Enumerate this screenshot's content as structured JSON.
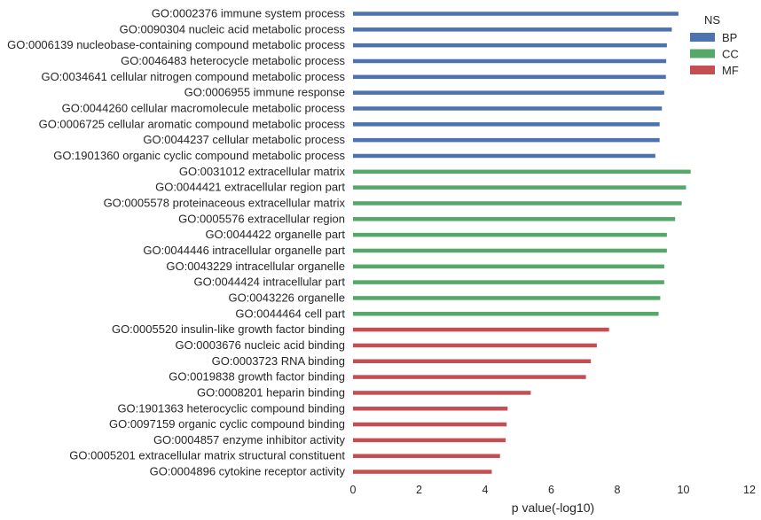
{
  "chart_data": {
    "type": "bar",
    "orientation": "horizontal",
    "title": "",
    "xlabel": "p value(-log10)",
    "ylabel": "",
    "xlim": [
      0,
      12
    ],
    "xticks": [
      0,
      2,
      4,
      6,
      8,
      10,
      12
    ],
    "grid": false,
    "legend": {
      "title": "NS",
      "placement": "top-right",
      "entries": [
        {
          "name": "BP",
          "color": "#4c72b0"
        },
        {
          "name": "CC",
          "color": "#55a868"
        },
        {
          "name": "MF",
          "color": "#c44e52"
        }
      ]
    },
    "categories": [
      {
        "label": "GO:0002376 immune system process",
        "ns": "BP",
        "value": 9.85
      },
      {
        "label": "GO:0090304 nucleic acid metabolic process",
        "ns": "BP",
        "value": 9.65
      },
      {
        "label": "GO:0006139 nucleobase-containing compound metabolic process",
        "ns": "BP",
        "value": 9.5
      },
      {
        "label": "GO:0046483 heterocycle metabolic process",
        "ns": "BP",
        "value": 9.48
      },
      {
        "label": "GO:0034641 cellular nitrogen compound metabolic process",
        "ns": "BP",
        "value": 9.47
      },
      {
        "label": "GO:0006955 immune response",
        "ns": "BP",
        "value": 9.42
      },
      {
        "label": "GO:0044260 cellular macromolecule metabolic process",
        "ns": "BP",
        "value": 9.35
      },
      {
        "label": "GO:0006725 cellular aromatic compound metabolic process",
        "ns": "BP",
        "value": 9.28
      },
      {
        "label": "GO:0044237 cellular metabolic process",
        "ns": "BP",
        "value": 9.28
      },
      {
        "label": "GO:1901360 organic cyclic compound metabolic process",
        "ns": "BP",
        "value": 9.15
      },
      {
        "label": "GO:0031012 extracellular matrix",
        "ns": "CC",
        "value": 10.22
      },
      {
        "label": "GO:0044421 extracellular region part",
        "ns": "CC",
        "value": 10.08
      },
      {
        "label": "GO:0005578 proteinaceous extracellular matrix",
        "ns": "CC",
        "value": 9.95
      },
      {
        "label": "GO:0005576 extracellular region",
        "ns": "CC",
        "value": 9.75
      },
      {
        "label": "GO:0044422 organelle part",
        "ns": "CC",
        "value": 9.5
      },
      {
        "label": "GO:0044446 intracellular organelle part",
        "ns": "CC",
        "value": 9.5
      },
      {
        "label": "GO:0043229 intracellular organelle",
        "ns": "CC",
        "value": 9.42
      },
      {
        "label": "GO:0044424 intracellular part",
        "ns": "CC",
        "value": 9.42
      },
      {
        "label": "GO:0043226 organelle",
        "ns": "CC",
        "value": 9.3
      },
      {
        "label": "GO:0044464 cell part",
        "ns": "CC",
        "value": 9.25
      },
      {
        "label": "GO:0005520 insulin-like growth factor binding",
        "ns": "MF",
        "value": 7.75
      },
      {
        "label": "GO:0003676 nucleic acid binding",
        "ns": "MF",
        "value": 7.38
      },
      {
        "label": "GO:0003723 RNA binding",
        "ns": "MF",
        "value": 7.2
      },
      {
        "label": "GO:0019838 growth factor binding",
        "ns": "MF",
        "value": 7.05
      },
      {
        "label": "GO:0008201 heparin binding",
        "ns": "MF",
        "value": 5.38
      },
      {
        "label": "GO:1901363 heterocyclic compound binding",
        "ns": "MF",
        "value": 4.68
      },
      {
        "label": "GO:0097159 organic cyclic compound binding",
        "ns": "MF",
        "value": 4.65
      },
      {
        "label": "GO:0004857 enzyme inhibitor activity",
        "ns": "MF",
        "value": 4.62
      },
      {
        "label": "GO:0005201 extracellular matrix structural constituent",
        "ns": "MF",
        "value": 4.45
      },
      {
        "label": "GO:0004896 cytokine receptor activity",
        "ns": "MF",
        "value": 4.2
      }
    ]
  }
}
